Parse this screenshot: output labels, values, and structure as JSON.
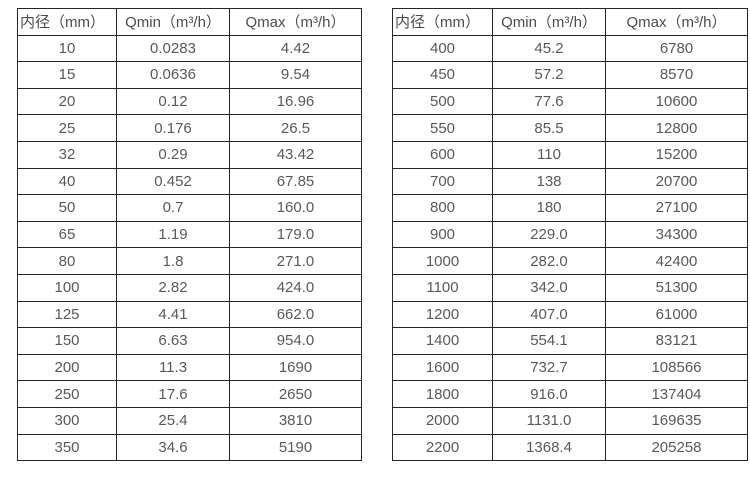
{
  "colors": {
    "background": "#ffffff",
    "border": "#262626",
    "text": "#595959"
  },
  "tables": [
    {
      "name": "flow-table-small-diameters",
      "headers": [
        "内径（mm）",
        "Qmin（m³/h）",
        "Qmax（m³/h）"
      ],
      "rows": [
        [
          "10",
          "0.0283",
          "4.42"
        ],
        [
          "15",
          "0.0636",
          "9.54"
        ],
        [
          "20",
          "0.12",
          "16.96"
        ],
        [
          "25",
          "0.176",
          "26.5"
        ],
        [
          "32",
          "0.29",
          "43.42"
        ],
        [
          "40",
          "0.452",
          "67.85"
        ],
        [
          "50",
          "0.7",
          "160.0"
        ],
        [
          "65",
          "1.19",
          "179.0"
        ],
        [
          "80",
          "1.8",
          "271.0"
        ],
        [
          "100",
          "2.82",
          "424.0"
        ],
        [
          "125",
          "4.41",
          "662.0"
        ],
        [
          "150",
          "6.63",
          "954.0"
        ],
        [
          "200",
          "11.3",
          "1690"
        ],
        [
          "250",
          "17.6",
          "2650"
        ],
        [
          "300",
          "25.4",
          "3810"
        ],
        [
          "350",
          "34.6",
          "5190"
        ]
      ]
    },
    {
      "name": "flow-table-large-diameters",
      "headers": [
        "内径（mm）",
        "Qmin（m³/h）",
        "Qmax（m³/h）"
      ],
      "rows": [
        [
          "400",
          "45.2",
          "6780"
        ],
        [
          "450",
          "57.2",
          "8570"
        ],
        [
          "500",
          "77.6",
          "10600"
        ],
        [
          "550",
          "85.5",
          "12800"
        ],
        [
          "600",
          "110",
          "15200"
        ],
        [
          "700",
          "138",
          "20700"
        ],
        [
          "800",
          "180",
          "27100"
        ],
        [
          "900",
          "229.0",
          "34300"
        ],
        [
          "1000",
          "282.0",
          "42400"
        ],
        [
          "1100",
          "342.0",
          "51300"
        ],
        [
          "1200",
          "407.0",
          "61000"
        ],
        [
          "1400",
          "554.1",
          "83121"
        ],
        [
          "1600",
          "732.7",
          "108566"
        ],
        [
          "1800",
          "916.0",
          "137404"
        ],
        [
          "2000",
          "1131.0",
          "169635"
        ],
        [
          "2200",
          "1368.4",
          "205258"
        ]
      ]
    }
  ]
}
